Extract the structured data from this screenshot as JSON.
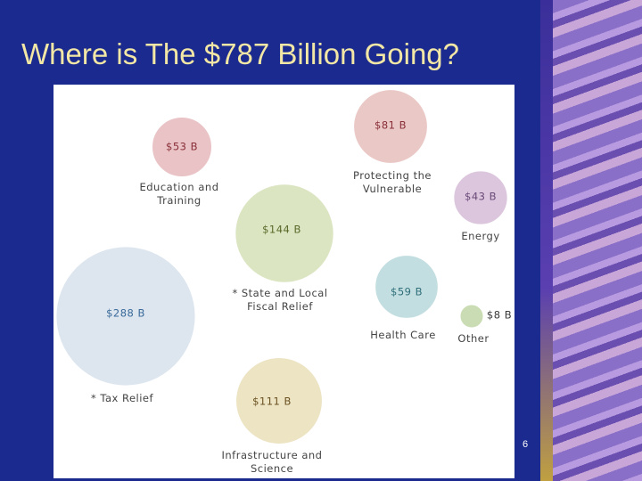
{
  "slide": {
    "title": "Where is The $787 Billion Going?",
    "page_number": "6"
  },
  "chart_data": {
    "type": "bubble",
    "categories": [
      "Education and Training",
      "Protecting the Vulnerable",
      "Energy",
      "* State and Local Fiscal Relief",
      "Health Care",
      "Other",
      "* Tax Relief",
      "Infrastructure and Science"
    ],
    "values": [
      53,
      81,
      43,
      144,
      59,
      8,
      288,
      111
    ],
    "value_labels": [
      "$53 B",
      "$81 B",
      "$43 B",
      "$144 B",
      "$59 B",
      "$8 B",
      "$288 B",
      "$111 B"
    ],
    "colors": [
      "#e9c3c6",
      "#eac8c6",
      "#dcc6dd",
      "#dbe5c2",
      "#c3dee1",
      "#cadcb3",
      "#dde6ef",
      "#ede4c4"
    ],
    "label_colors": [
      "#8a2f38",
      "#8a2f38",
      "#6a4a78",
      "#5a6a2a",
      "#2f6f7a",
      "#3a3a3a",
      "#3a6a9a",
      "#6a5222"
    ]
  }
}
